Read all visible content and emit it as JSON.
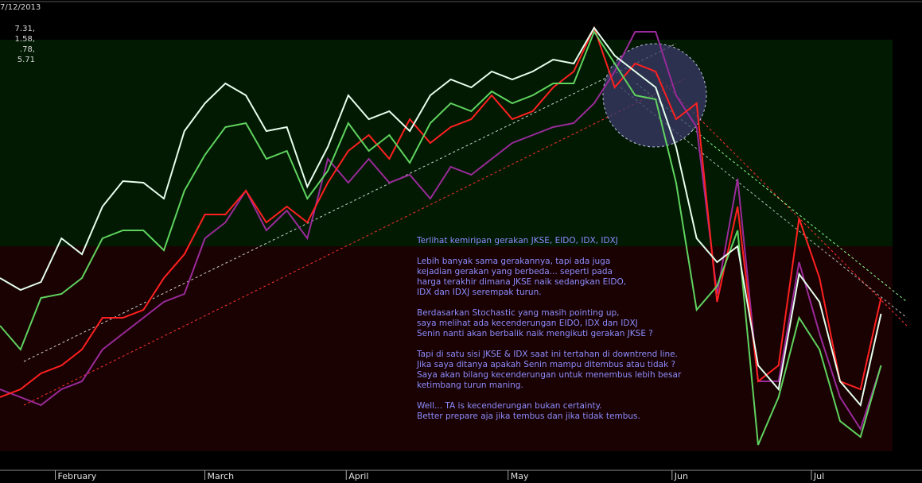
{
  "chart_data": {
    "type": "line",
    "header_lines": [
      "7/12/2013",
      "7.31,",
      "1.58,",
      ".78,",
      "5.71"
    ],
    "annotations": [
      [
        "Terlihat kemiripan gerakan JKSE, EIDO, IDX, IDXJ"
      ],
      [
        "Lebih banyak sama gerakannya, tapi ada juga",
        "kejadian gerakan yang berbeda... seperti pada",
        "harga terakhir dimana JKSE naik sedangkan EIDO,",
        "IDX dan IDXJ serempak turun."
      ],
      [
        "Berdasarkan Stochastic yang masih pointing up,",
        "saya melihat ada kecenderungan EIDO, IDX dan IDXJ",
        "Senin nanti akan berbalik naik mengikuti gerakan JKSE ?"
      ],
      [
        "Tapi di satu sisi JKSE & IDX saat ini tertahan di downtrend line.",
        "Jika saya ditanya apakah Senin mampu ditembus atau tidak ?",
        "Saya akan bilang kecenderungan untuk menembus lebih besar",
        "ketimbang turun maning."
      ],
      [
        "Well... TA is kecenderungan bukan certainty.",
        "Better prepare aja jika tembus dan jika tidak tembus."
      ]
    ],
    "x": [
      0,
      1,
      2,
      3,
      4,
      5,
      6,
      7,
      8,
      9,
      10,
      11,
      12,
      13,
      14,
      15,
      16,
      17,
      18,
      19,
      20,
      21,
      22,
      23,
      24,
      25,
      26,
      27,
      28,
      29,
      30,
      31,
      32,
      33,
      34,
      35,
      36,
      37,
      38,
      39,
      40,
      41,
      42,
      43
    ],
    "series": [
      {
        "color": "#e6ffee",
        "values": [
          250,
          235,
          245,
          300,
          280,
          340,
          372,
          370,
          350,
          435,
          470,
          495,
          480,
          435,
          440,
          365,
          415,
          480,
          450,
          460,
          435,
          480,
          500,
          490,
          510,
          500,
          510,
          525,
          520,
          565,
          530,
          510,
          490,
          415,
          300,
          270,
          290,
          140,
          110,
          255,
          220,
          120,
          90,
          205
        ]
      },
      {
        "color": "#5fd35f",
        "values": [
          190,
          160,
          225,
          230,
          250,
          300,
          310,
          310,
          285,
          360,
          405,
          440,
          445,
          400,
          410,
          350,
          385,
          445,
          410,
          430,
          395,
          445,
          470,
          460,
          485,
          470,
          480,
          495,
          495,
          560,
          520,
          480,
          475,
          370,
          210,
          240,
          310,
          40,
          100,
          200,
          160,
          70,
          50,
          140
        ]
      },
      {
        "color": "#ff2020",
        "values": [
          100,
          110,
          130,
          140,
          160,
          200,
          200,
          210,
          250,
          280,
          330,
          330,
          360,
          320,
          340,
          320,
          370,
          410,
          430,
          400,
          450,
          420,
          440,
          450,
          480,
          450,
          460,
          490,
          510,
          565,
          490,
          520,
          510,
          450,
          470,
          220,
          340,
          120,
          140,
          325,
          250,
          120,
          110,
          225
        ]
      },
      {
        "color": "#9a2a9a",
        "values": [
          110,
          100,
          90,
          110,
          120,
          160,
          180,
          200,
          220,
          230,
          300,
          320,
          360,
          310,
          335,
          300,
          400,
          370,
          400,
          370,
          380,
          350,
          390,
          380,
          400,
          420,
          430,
          440,
          445,
          470,
          510,
          560,
          560,
          480,
          440,
          230,
          375,
          120,
          120,
          270,
          180,
          100,
          60,
          140
        ]
      }
    ],
    "xlim": [
      0,
      45
    ],
    "ylim": [
      0,
      600
    ],
    "xticks": [
      {
        "value": 2.7,
        "label": "February"
      },
      {
        "value": 10,
        "label": "March"
      },
      {
        "value": 16.9,
        "label": "April"
      },
      {
        "value": 24.8,
        "label": "May"
      },
      {
        "value": 32.8,
        "label": "Jun"
      },
      {
        "value": 39.6,
        "label": "Jul"
      }
    ]
  }
}
